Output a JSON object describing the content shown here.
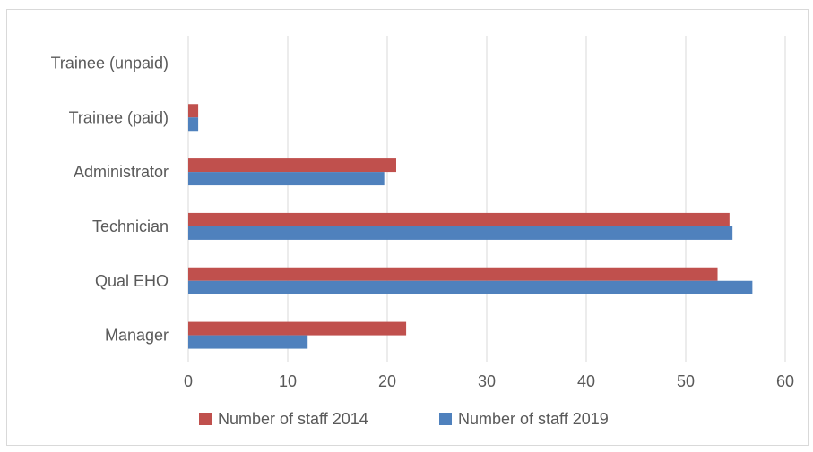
{
  "chart_data": {
    "type": "bar",
    "orientation": "horizontal",
    "categories": [
      "Manager",
      "Qual EHO",
      "Technician",
      "Administrator",
      "Trainee (paid)",
      "Trainee (unpaid)"
    ],
    "series": [
      {
        "name": "Number of staff 2014",
        "color": "#c0504d",
        "values": [
          21.9,
          53.2,
          54.4,
          20.9,
          1.0,
          0
        ]
      },
      {
        "name": "Number of staff 2019",
        "color": "#4f81bd",
        "values": [
          12.0,
          56.7,
          54.7,
          19.7,
          1.0,
          0
        ]
      }
    ],
    "xlim": [
      0,
      60
    ],
    "xticks": [
      "0",
      "10",
      "20",
      "30",
      "40",
      "50",
      "60"
    ],
    "grid": true,
    "legend_position": "bottom"
  }
}
